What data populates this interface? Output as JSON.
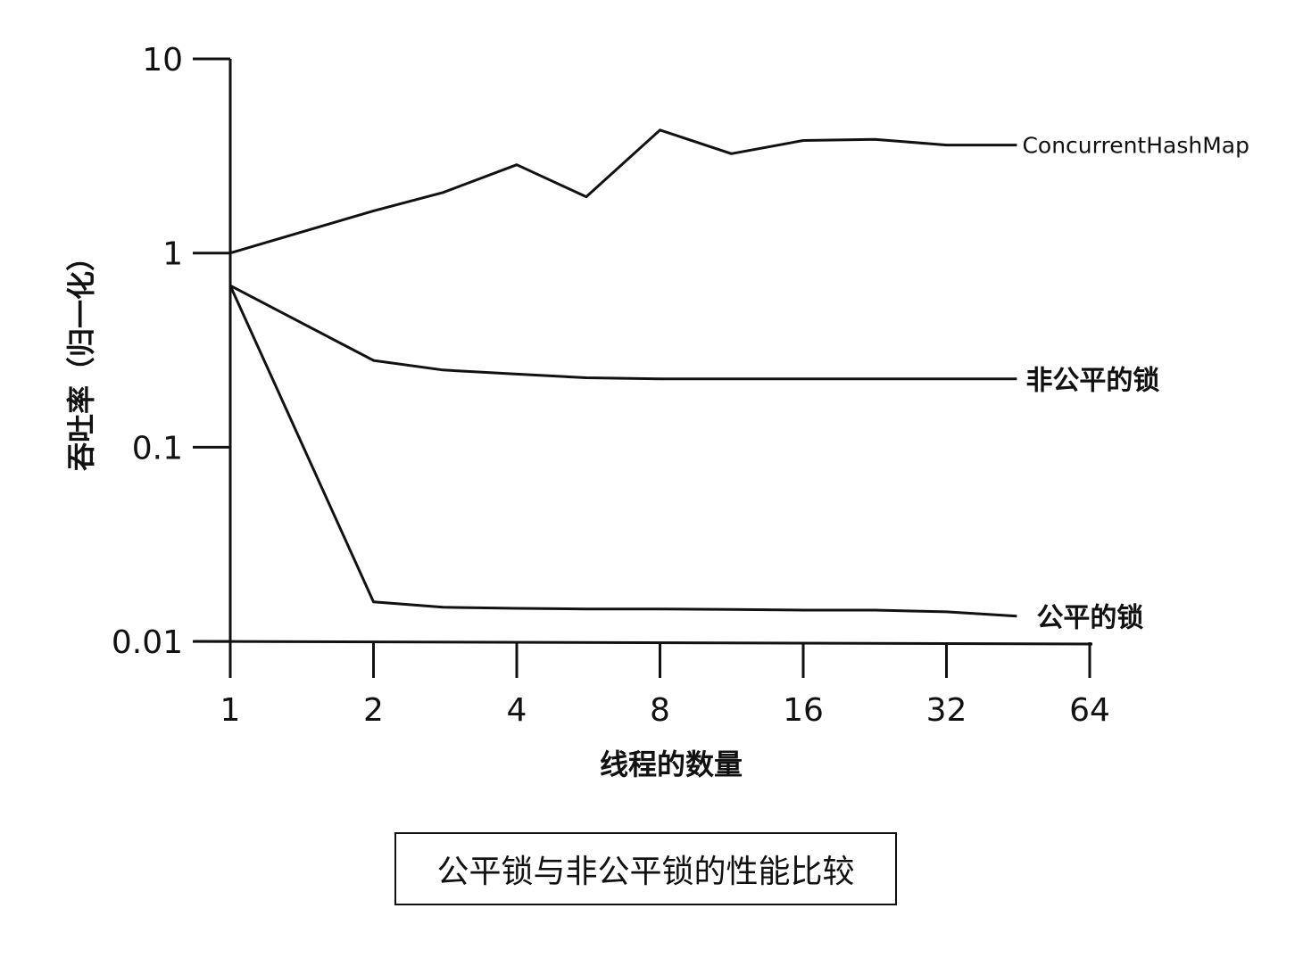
{
  "chart_data": {
    "type": "line",
    "title": "公平锁与非公平锁的性能比较",
    "xlabel": "线程的数量",
    "ylabel": "吞吐率（归一化）",
    "x_tick_labels": [
      "1",
      "2",
      "4",
      "8",
      "16",
      "32",
      "64"
    ],
    "y_tick_labels": [
      "10",
      "1",
      "0.1",
      "0.01"
    ],
    "y_scale": "log",
    "ylim": [
      0.01,
      10
    ],
    "xlim": [
      1,
      64
    ],
    "x_scale": "log2",
    "grid": false,
    "legend": "inline labels at right end of each line",
    "series": [
      {
        "name": "ConcurrentHashMap",
        "x": [
          1,
          2,
          2.8,
          4,
          5.6,
          8,
          11.3,
          16,
          22.6,
          32,
          45
        ],
        "y": [
          1.0,
          1.65,
          2.05,
          2.85,
          1.95,
          4.3,
          3.25,
          3.8,
          3.85,
          3.6,
          3.6
        ]
      },
      {
        "name": "非公平的锁",
        "x": [
          1,
          2,
          2.8,
          4,
          5.6,
          8,
          11.3,
          16,
          22.6,
          32,
          45
        ],
        "y": [
          0.68,
          0.28,
          0.25,
          0.238,
          0.228,
          0.225,
          0.225,
          0.225,
          0.225,
          0.225,
          0.225
        ]
      },
      {
        "name": "公平的锁",
        "x": [
          1,
          2,
          2.8,
          4,
          5.6,
          8,
          11.3,
          16,
          22.6,
          32,
          45
        ],
        "y": [
          0.68,
          0.016,
          0.015,
          0.0148,
          0.0147,
          0.0147,
          0.0146,
          0.0145,
          0.0145,
          0.0142,
          0.0135
        ]
      }
    ]
  }
}
